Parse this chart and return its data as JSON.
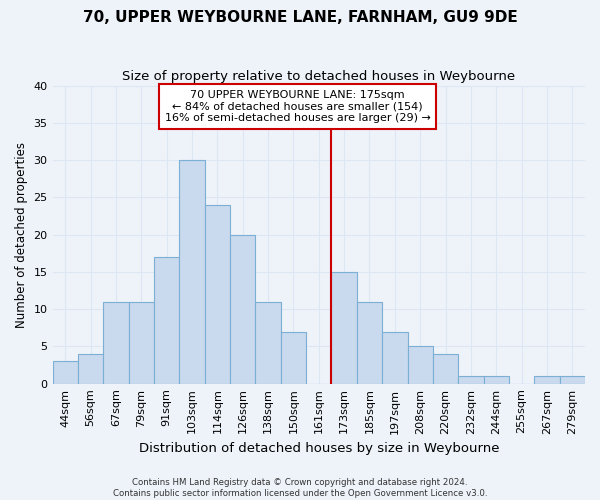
{
  "title": "70, UPPER WEYBOURNE LANE, FARNHAM, GU9 9DE",
  "subtitle": "Size of property relative to detached houses in Weybourne",
  "xlabel": "Distribution of detached houses by size in Weybourne",
  "ylabel": "Number of detached properties",
  "bar_labels": [
    "44sqm",
    "56sqm",
    "67sqm",
    "79sqm",
    "91sqm",
    "103sqm",
    "114sqm",
    "126sqm",
    "138sqm",
    "150sqm",
    "161sqm",
    "173sqm",
    "185sqm",
    "197sqm",
    "208sqm",
    "220sqm",
    "232sqm",
    "244sqm",
    "255sqm",
    "267sqm",
    "279sqm"
  ],
  "bar_values": [
    3,
    4,
    11,
    11,
    17,
    30,
    24,
    20,
    11,
    7,
    0,
    15,
    11,
    7,
    5,
    4,
    1,
    1,
    0,
    1,
    1
  ],
  "bar_color": "#c9d9ee",
  "bar_edge_color": "#7bafd4",
  "highlight_line_color": "#cc0000",
  "highlight_bar_index": 11,
  "ylim": [
    0,
    40
  ],
  "yticks": [
    0,
    5,
    10,
    15,
    20,
    25,
    30,
    35,
    40
  ],
  "annotation_title": "70 UPPER WEYBOURNE LANE: 175sqm",
  "annotation_line1": "← 84% of detached houses are smaller (154)",
  "annotation_line2": "16% of semi-detached houses are larger (29) →",
  "footnote1": "Contains HM Land Registry data © Crown copyright and database right 2024.",
  "footnote2": "Contains public sector information licensed under the Open Government Licence v3.0.",
  "bg_color": "#eef2f9",
  "grid_color": "#dce6f5",
  "title_fontsize": 11,
  "subtitle_fontsize": 9.5
}
